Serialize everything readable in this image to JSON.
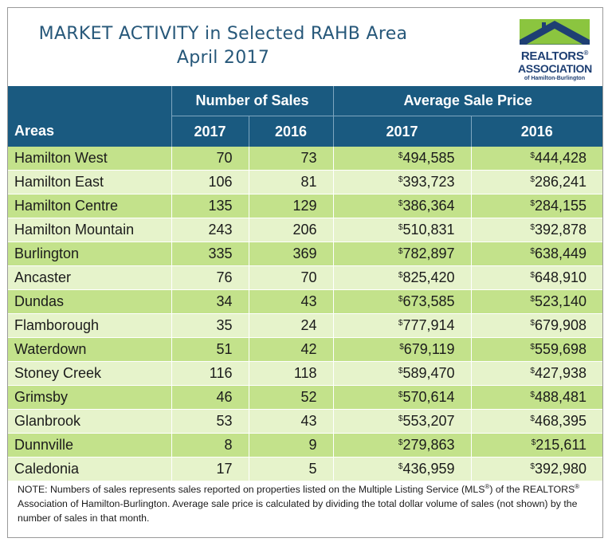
{
  "header": {
    "title_line1": "MARKET ACTIVITY in Selected RAHB Area",
    "title_line2": "April 2017"
  },
  "logo": {
    "line1": "REALTORS",
    "line1_mark": "®",
    "line2": "ASSOCIATION",
    "line3": "of Hamilton-Burlington",
    "colors": {
      "green": "#8bc53f",
      "blue": "#1e3f73"
    }
  },
  "table": {
    "group_headers": {
      "sales": "Number of Sales",
      "price": "Average Sale Price"
    },
    "year_headers": {
      "areas": "Areas",
      "sales_2017": "2017",
      "sales_2016": "2016",
      "price_2017": "2017",
      "price_2016": "2016"
    },
    "currency_symbol": "$",
    "rows": [
      {
        "area": "Hamilton West",
        "sales_2017": "70",
        "sales_2016": "73",
        "price_2017": "494,585",
        "price_2016": "444,428"
      },
      {
        "area": "Hamilton East",
        "sales_2017": "106",
        "sales_2016": "81",
        "price_2017": "393,723",
        "price_2016": "286,241"
      },
      {
        "area": "Hamilton Centre",
        "sales_2017": "135",
        "sales_2016": "129",
        "price_2017": "386,364",
        "price_2016": "284,155"
      },
      {
        "area": "Hamilton Mountain",
        "sales_2017": "243",
        "sales_2016": "206",
        "price_2017": "510,831",
        "price_2016": "392,878"
      },
      {
        "area": "Burlington",
        "sales_2017": "335",
        "sales_2016": "369",
        "price_2017": "782,897",
        "price_2016": "638,449"
      },
      {
        "area": "Ancaster",
        "sales_2017": "76",
        "sales_2016": "70",
        "price_2017": "825,420",
        "price_2016": "648,910"
      },
      {
        "area": "Dundas",
        "sales_2017": "34",
        "sales_2016": "43",
        "price_2017": "673,585",
        "price_2016": "523,140"
      },
      {
        "area": "Flamborough",
        "sales_2017": "35",
        "sales_2016": "24",
        "price_2017": "777,914",
        "price_2016": "679,908"
      },
      {
        "area": "Waterdown",
        "sales_2017": "51",
        "sales_2016": "42",
        "price_2017": "679,119",
        "price_2016": "559,698"
      },
      {
        "area": "Stoney Creek",
        "sales_2017": "116",
        "sales_2016": "118",
        "price_2017": "589,470",
        "price_2016": "427,938"
      },
      {
        "area": "Grimsby",
        "sales_2017": "46",
        "sales_2016": "52",
        "price_2017": "570,614",
        "price_2016": "488,481"
      },
      {
        "area": "Glanbrook",
        "sales_2017": "53",
        "sales_2016": "43",
        "price_2017": "553,207",
        "price_2016": "468,395"
      },
      {
        "area": "Dunnville",
        "sales_2017": "8",
        "sales_2016": "9",
        "price_2017": "279,863",
        "price_2016": "215,611"
      },
      {
        "area": "Caledonia",
        "sales_2017": "17",
        "sales_2016": "5",
        "price_2017": "436,959",
        "price_2016": "392,980"
      }
    ]
  },
  "note": {
    "part1": "NOTE:  Numbers of sales represents sales reported on properties listed on the Multiple Listing Service (MLS",
    "mark1": "®",
    "part2": ") of the REALTORS",
    "mark2": "®",
    "part3": " Association of Hamilton-Burlington.  Average sale price is calculated by dividing the total dollar volume of sales (not shown) by the number of sales in that month."
  }
}
